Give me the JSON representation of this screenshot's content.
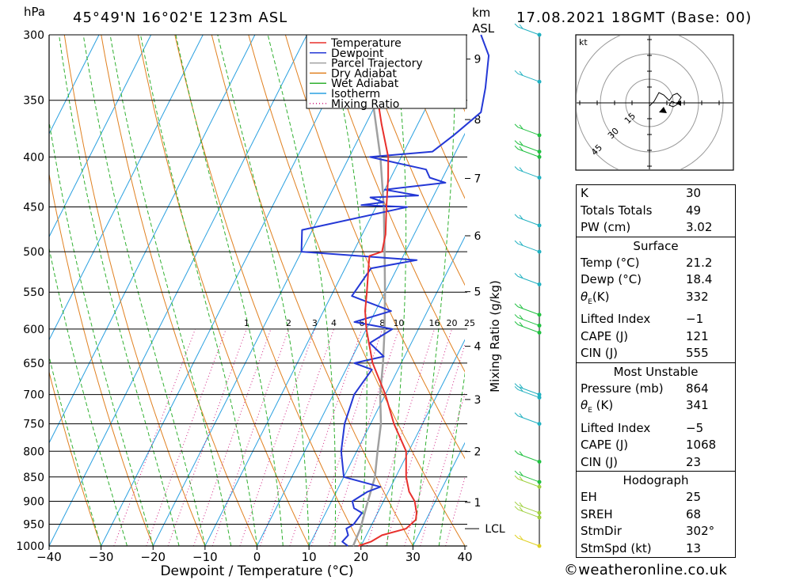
{
  "header": {
    "location": "45°49'N 16°02'E 123m ASL",
    "datetime": "17.08.2021 18GMT (Base: 00)",
    "hpa_unit": "hPa",
    "km_unit": "km",
    "asl_unit": "ASL"
  },
  "footer": {
    "credit": "©weatheronline.co.uk"
  },
  "chart_data": {
    "type": "line",
    "xlabel": "Dewpoint / Temperature (°C)",
    "y2label": "Mixing Ratio (g/kg)",
    "xlim": [
      -40,
      40
    ],
    "ylim": [
      1000,
      300
    ],
    "x_ticks": [
      "−40",
      "−30",
      "−20",
      "−10",
      "0",
      "10",
      "20",
      "30",
      "40"
    ],
    "pressure_levels": [
      300,
      350,
      400,
      450,
      500,
      550,
      600,
      650,
      700,
      750,
      800,
      850,
      900,
      950,
      1000
    ],
    "pressure_labels": [
      "300",
      "350",
      "400",
      "450",
      "500",
      "550",
      "600",
      "650",
      "700",
      "750",
      "800",
      "850",
      "900",
      "950",
      "1000"
    ],
    "km_ticks": [
      {
        "km": 1,
        "label": "1"
      },
      {
        "km": 2,
        "label": "2"
      },
      {
        "km": 3,
        "label": "3"
      },
      {
        "km": 4,
        "label": "4"
      },
      {
        "km": 5,
        "label": "5"
      },
      {
        "km": 6,
        "label": "6"
      },
      {
        "km": 7,
        "label": "7"
      },
      {
        "km": 8,
        "label": "8"
      },
      {
        "km": 9,
        "label": "9"
      }
    ],
    "lcl": {
      "label": "LCL",
      "pressure": 960
    },
    "mixing_ratio_labels": [
      "1",
      "2",
      "3",
      "4",
      "6",
      "8",
      "10",
      "16",
      "20",
      "25"
    ],
    "mixing_ratio_values": [
      1,
      2,
      3,
      4,
      6,
      8,
      10,
      16,
      20,
      25
    ],
    "legend": [
      {
        "name": "Temperature",
        "color": "#e8302c"
      },
      {
        "name": "Dewpoint",
        "color": "#2438d6"
      },
      {
        "name": "Parcel Trajectory",
        "color": "#a0a0a0"
      },
      {
        "name": "Dry Adiabat",
        "color": "#e08020"
      },
      {
        "name": "Wet Adiabat",
        "color": "#30b030"
      },
      {
        "name": "Isotherm",
        "color": "#2aa0e0"
      },
      {
        "name": "Mixing Ratio",
        "color": "#d02080"
      }
    ],
    "series": [
      {
        "name": "Temperature",
        "points": [
          [
            1000,
            19.5
          ],
          [
            990,
            21.5
          ],
          [
            975,
            23.0
          ],
          [
            960,
            27.0
          ],
          [
            940,
            28.0
          ],
          [
            925,
            27.5
          ],
          [
            900,
            26.0
          ],
          [
            880,
            24.0
          ],
          [
            850,
            22.0
          ],
          [
            800,
            19.5
          ],
          [
            750,
            14.5
          ],
          [
            700,
            10.0
          ],
          [
            650,
            4.5
          ],
          [
            600,
            0.0
          ],
          [
            575,
            -2.0
          ],
          [
            550,
            -3.5
          ],
          [
            520,
            -5.5
          ],
          [
            505,
            -6.5
          ],
          [
            500,
            -4.5
          ],
          [
            480,
            -5.5
          ],
          [
            450,
            -8.0
          ],
          [
            420,
            -10.5
          ],
          [
            400,
            -12.5
          ],
          [
            370,
            -17.0
          ],
          [
            350,
            -20.0
          ],
          [
            300,
            -26.0
          ]
        ]
      },
      {
        "name": "Dewpoint",
        "points": [
          [
            1000,
            17.5
          ],
          [
            990,
            16.0
          ],
          [
            975,
            16.5
          ],
          [
            960,
            15.5
          ],
          [
            950,
            16.5
          ],
          [
            925,
            17.0
          ],
          [
            915,
            15.0
          ],
          [
            900,
            14.0
          ],
          [
            880,
            16.0
          ],
          [
            870,
            18.0
          ],
          [
            850,
            10.0
          ],
          [
            800,
            7.0
          ],
          [
            750,
            5.0
          ],
          [
            700,
            4.0
          ],
          [
            660,
            5.0
          ],
          [
            650,
            1.0
          ],
          [
            640,
            6.0
          ],
          [
            620,
            2.0
          ],
          [
            600,
            5.0
          ],
          [
            590,
            -3.0
          ],
          [
            575,
            3.0
          ],
          [
            555,
            -6.0
          ],
          [
            520,
            -5.0
          ],
          [
            510,
            3.0
          ],
          [
            500,
            -20.0
          ],
          [
            475,
            -22.0
          ],
          [
            450,
            -4.0
          ],
          [
            448,
            -13.0
          ],
          [
            445,
            -9.0
          ],
          [
            440,
            -12.0
          ],
          [
            438,
            -3.0
          ],
          [
            432,
            -10.0
          ],
          [
            425,
            1.0
          ],
          [
            420,
            -2.5
          ],
          [
            412,
            -4.0
          ],
          [
            400,
            -16.0
          ],
          [
            395,
            -4.5
          ],
          [
            380,
            -2.0
          ],
          [
            360,
            1.0
          ],
          [
            340,
            -0.5
          ],
          [
            315,
            -3.0
          ],
          [
            300,
            -6.5
          ]
        ]
      },
      {
        "name": "Parcel Trajectory",
        "points": [
          [
            1000,
            18.5
          ],
          [
            960,
            18.2
          ],
          [
            900,
            17.0
          ],
          [
            850,
            16.0
          ],
          [
            800,
            14.0
          ],
          [
            750,
            12.0
          ],
          [
            700,
            9.0
          ],
          [
            650,
            6.5
          ],
          [
            600,
            3.5
          ],
          [
            550,
            0.0
          ],
          [
            500,
            -4.0
          ],
          [
            450,
            -8.5
          ],
          [
            400,
            -14.0
          ],
          [
            350,
            -21.0
          ],
          [
            310,
            -27.0
          ]
        ]
      }
    ],
    "wind_profile": [
      {
        "pressure": 300,
        "color": "#20b0c0"
      },
      {
        "pressure": 335,
        "color": "#20b0c0"
      },
      {
        "pressure": 380,
        "color": "#20c040"
      },
      {
        "pressure": 395,
        "color": "#20c040"
      },
      {
        "pressure": 400,
        "color": "#20c040"
      },
      {
        "pressure": 420,
        "color": "#20b0c0"
      },
      {
        "pressure": 470,
        "color": "#20b0c0"
      },
      {
        "pressure": 500,
        "color": "#20b0c0"
      },
      {
        "pressure": 540,
        "color": "#20b0c0"
      },
      {
        "pressure": 580,
        "color": "#20c040"
      },
      {
        "pressure": 595,
        "color": "#20c040"
      },
      {
        "pressure": 605,
        "color": "#20c040"
      },
      {
        "pressure": 700,
        "color": "#20b0c0"
      },
      {
        "pressure": 705,
        "color": "#20b0c0"
      },
      {
        "pressure": 750,
        "color": "#20b0c0"
      },
      {
        "pressure": 820,
        "color": "#20c040"
      },
      {
        "pressure": 860,
        "color": "#20c040"
      },
      {
        "pressure": 870,
        "color": "#a0d040"
      },
      {
        "pressure": 925,
        "color": "#a0d040"
      },
      {
        "pressure": 935,
        "color": "#a0d040"
      },
      {
        "pressure": 1000,
        "color": "#e0d020"
      }
    ]
  },
  "hodograph": {
    "unit": "kt",
    "rings": [
      "15",
      "30",
      "45"
    ]
  },
  "indices": {
    "general": [
      {
        "label": "K",
        "value": "30"
      },
      {
        "label": "Totals Totals",
        "value": "49"
      },
      {
        "label": "PW (cm)",
        "value": "3.02"
      }
    ],
    "surface": {
      "title": "Surface",
      "rows": [
        {
          "label": "Temp (°C)",
          "value": "21.2"
        },
        {
          "label": "Dewp (°C)",
          "value": "18.4"
        },
        {
          "label": "θE(K)",
          "value": "332"
        },
        {
          "label": "Lifted Index",
          "value": "−1"
        },
        {
          "label": "CAPE (J)",
          "value": "121"
        },
        {
          "label": "CIN (J)",
          "value": "555"
        }
      ]
    },
    "most_unstable": {
      "title": "Most Unstable",
      "rows": [
        {
          "label": "Pressure (mb)",
          "value": "864"
        },
        {
          "label": "θE (K)",
          "value": "341"
        },
        {
          "label": "Lifted Index",
          "value": "−5"
        },
        {
          "label": "CAPE (J)",
          "value": "1068"
        },
        {
          "label": "CIN (J)",
          "value": "23"
        }
      ]
    },
    "hodograph_stats": {
      "title": "Hodograph",
      "rows": [
        {
          "label": "EH",
          "value": "25"
        },
        {
          "label": "SREH",
          "value": "68"
        },
        {
          "label": "StmDir",
          "value": "302°"
        },
        {
          "label": "StmSpd (kt)",
          "value": "13"
        }
      ]
    }
  }
}
